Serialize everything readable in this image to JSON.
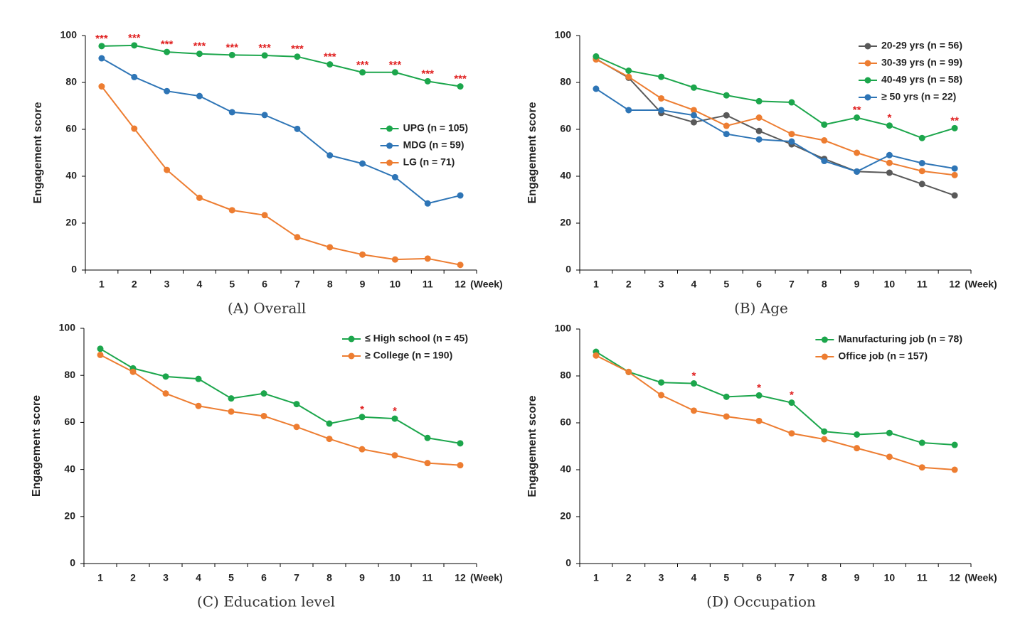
{
  "chart_data": [
    {
      "type": "line",
      "caption": "(A)  Overall",
      "ylabel": "Engagement score",
      "xlabel": "(Week)",
      "categories": [
        "1",
        "2",
        "3",
        "4",
        "5",
        "6",
        "7",
        "8",
        "9",
        "10",
        "11",
        "12"
      ],
      "ylim": [
        0,
        100
      ],
      "yticks": [
        0,
        20,
        40,
        60,
        80,
        100
      ],
      "legend": "center right",
      "series": [
        {
          "name": "UPG (n = 105)",
          "color": "#1ca64c",
          "values": [
            95.5,
            95.8,
            93,
            92.2,
            91.7,
            91.5,
            91,
            87.7,
            84.3,
            84.3,
            80.5,
            78.3
          ]
        },
        {
          "name": "MDG (n = 59)",
          "color": "#2e75b6",
          "values": [
            90.3,
            82.3,
            76.3,
            74.2,
            67.3,
            66.1,
            60.2,
            48.9,
            45.4,
            39.6,
            28.4,
            31.8
          ]
        },
        {
          "name": "LG (n = 71)",
          "color": "#ed7d31",
          "values": [
            78.3,
            60.3,
            42.7,
            30.8,
            25.5,
            23.4,
            14,
            9.7,
            6.6,
            4.5,
            4.9,
            2.2
          ]
        }
      ],
      "significance": [
        "***",
        "***",
        "***",
        "***",
        "***",
        "***",
        "***",
        "***",
        "***",
        "***",
        "***",
        "***"
      ],
      "significance_color": "#e02020"
    },
    {
      "type": "line",
      "caption": "(B)  Age",
      "ylabel": "Engagement score",
      "xlabel": "(Week)",
      "categories": [
        "1",
        "2",
        "3",
        "4",
        "5",
        "6",
        "7",
        "8",
        "9",
        "10",
        "11",
        "12"
      ],
      "ylim": [
        0,
        100
      ],
      "yticks": [
        0,
        20,
        40,
        60,
        80,
        100
      ],
      "legend": "upper right",
      "series": [
        {
          "name": "20-29 yrs (n = 56)",
          "color": "#595959",
          "values": [
            90,
            82,
            67,
            63,
            66,
            59.3,
            53.6,
            47.4,
            42,
            41.5,
            36.7,
            31.8
          ]
        },
        {
          "name": "30-39 yrs (n = 99)",
          "color": "#ed7d31",
          "values": [
            89.8,
            82.4,
            73.2,
            68.2,
            61.5,
            65,
            58,
            55.3,
            50,
            45.7,
            42.2,
            40.5
          ]
        },
        {
          "name": "40-49 yrs (n = 58)",
          "color": "#1ca64c",
          "values": [
            91.1,
            85,
            82.4,
            77.8,
            74.5,
            72,
            71.5,
            62,
            65,
            61.6,
            56.3,
            60.5
          ]
        },
        {
          "name": "≥ 50 yrs (n = 22)",
          "color": "#2e75b6",
          "values": [
            77.3,
            68.2,
            68.2,
            66,
            58,
            55.7,
            54.8,
            46.5,
            42,
            49,
            45.6,
            43.3
          ]
        }
      ],
      "significance": [
        null,
        null,
        null,
        null,
        null,
        null,
        null,
        null,
        "**",
        "*",
        null,
        "**"
      ],
      "significance_color": "#e02020"
    },
    {
      "type": "line",
      "caption": "(C)  Education  level",
      "ylabel": "Engagement score",
      "xlabel": "(Week)",
      "categories": [
        "1",
        "2",
        "3",
        "4",
        "5",
        "6",
        "7",
        "8",
        "9",
        "10",
        "11",
        "12"
      ],
      "ylim": [
        0,
        100
      ],
      "yticks": [
        0,
        20,
        40,
        60,
        80,
        100
      ],
      "legend": "upper right",
      "series": [
        {
          "name": "≤ High school (n = 45)",
          "color": "#1ca64c",
          "values": [
            91.3,
            83,
            79.5,
            78.5,
            70.2,
            72.3,
            67.8,
            59.5,
            62.3,
            61.6,
            53.4,
            51.1
          ]
        },
        {
          "name": "≥ College (n = 190)",
          "color": "#ed7d31",
          "values": [
            88.7,
            81.5,
            72.3,
            67,
            64.6,
            62.7,
            58.1,
            53,
            48.6,
            46,
            42.7,
            41.8
          ]
        }
      ],
      "significance": [
        null,
        null,
        null,
        null,
        null,
        null,
        null,
        null,
        "*",
        "*",
        null,
        null
      ],
      "significance_color": "#e02020"
    },
    {
      "type": "line",
      "caption": "(D)  Occupation",
      "ylabel": "Engagement score",
      "xlabel": "(Week)",
      "categories": [
        "1",
        "2",
        "3",
        "4",
        "5",
        "6",
        "7",
        "8",
        "9",
        "10",
        "11",
        "12"
      ],
      "ylim": [
        0,
        100
      ],
      "yticks": [
        0,
        20,
        40,
        60,
        80,
        100
      ],
      "legend": "upper right",
      "series": [
        {
          "name": "Manufacturing job (n = 78)",
          "color": "#1ca64c",
          "values": [
            90.3,
            81.7,
            77.2,
            76.8,
            71.1,
            71.7,
            68.6,
            56.3,
            55,
            55.7,
            51.5,
            50.6
          ]
        },
        {
          "name": "Office job (n = 157)",
          "color": "#ed7d31",
          "values": [
            88.7,
            81.7,
            71.8,
            65.2,
            62.7,
            60.8,
            55.5,
            53,
            49.2,
            45.5,
            41,
            40
          ]
        }
      ],
      "significance": [
        null,
        null,
        null,
        "*",
        null,
        "*",
        "*",
        null,
        null,
        null,
        null,
        null
      ],
      "significance_color": "#e02020"
    }
  ]
}
